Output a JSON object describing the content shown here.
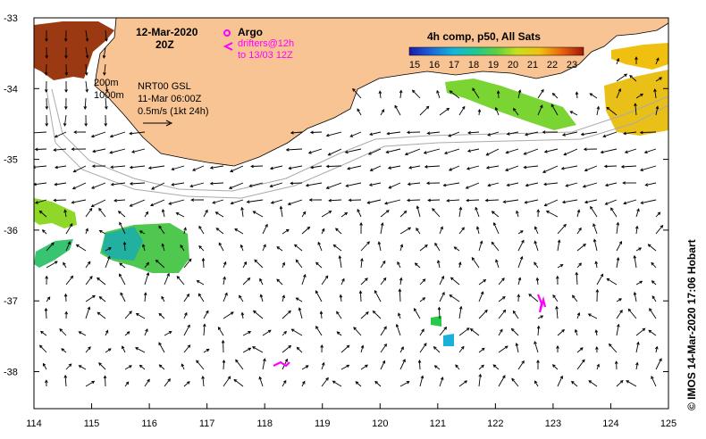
{
  "map": {
    "date": "12-Mar-2020",
    "time": "20Z",
    "argo_label": "Argo",
    "drifters_label": "drifters@12h",
    "drifters_to": "to 13/03 12Z",
    "contour1": "200m",
    "contour2": "1000m",
    "analysis": "NRT00 GSL",
    "analysis_time": "11-Mar 06:00Z",
    "scale": "0.5m/s (1kt 24h)",
    "credit": "©  IMOS 14-Mar-2020 17:06 Hobart",
    "colorbar_title": "4h comp, p50, All Sats",
    "colorbar_ticks": [
      "15",
      "16",
      "17",
      "18",
      "19",
      "20",
      "21",
      "22",
      "23"
    ],
    "lon_ticks": [
      "114",
      "115",
      "116",
      "117",
      "118",
      "119",
      "120",
      "121",
      "122",
      "123",
      "124",
      "125"
    ],
    "lat_ticks": [
      "-33",
      "-34",
      "-35",
      "-36",
      "-37",
      "-38"
    ],
    "land_color": "#f9c493",
    "drifter_color": "#ff00ff"
  },
  "chart_data": {
    "type": "map",
    "title": "12-Mar-2020 20Z",
    "lon_range": [
      114,
      125
    ],
    "lat_range": [
      -38.5,
      -33
    ],
    "sst_range_c": [
      15,
      23.5
    ],
    "colorbar_title": "4h comp, p50, All Sats",
    "sst_patches": [
      {
        "region": "NW corner off Cape Leeuwin",
        "lon": [
          114,
          115.2
        ],
        "lat": [
          -34.1,
          -33
        ],
        "sst_c": 23
      },
      {
        "region": "off Cape Leeuwin west",
        "lon": [
          114,
          114.7
        ],
        "lat": [
          -36.5,
          -35.6
        ],
        "sst_c": 19.5
      },
      {
        "region": "central west",
        "lon": [
          114.8,
          116.7
        ],
        "lat": [
          -36.6,
          -36
        ],
        "sst_c": 18.5
      },
      {
        "region": "south coast shelf",
        "lon": [
          121.2,
          123.3
        ],
        "lat": [
          -34.6,
          -33.8
        ],
        "sst_c": 19
      },
      {
        "region": "east offshore",
        "lon": [
          123.5,
          125
        ],
        "lat": [
          -34.6,
          -33.5
        ],
        "sst_c": 21
      },
      {
        "region": "patch near 121E",
        "lon": [
          120.9,
          121.5
        ],
        "lat": [
          -37.9,
          -37.3
        ],
        "sst_c": 16.5
      }
    ],
    "drifters": [
      {
        "lon": 122.8,
        "lat": -37.1
      },
      {
        "lon": 118.4,
        "lat": -37.9
      }
    ],
    "current_scale": "0.5m/s (1kt 24h)"
  }
}
